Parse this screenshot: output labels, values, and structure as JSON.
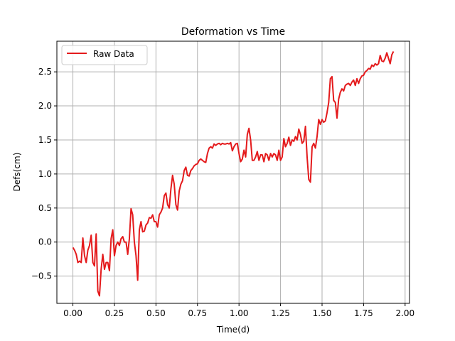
{
  "chart_data": {
    "type": "line",
    "title": "Deformation vs Time",
    "xlabel": "Time(d)",
    "ylabel": "Defs(cm)",
    "xlim": [
      -0.0965,
      2.0265
    ],
    "ylim": [
      -0.9,
      2.95
    ],
    "xticks": [
      0.0,
      0.25,
      0.5,
      0.75,
      1.0,
      1.25,
      1.5,
      1.75,
      2.0
    ],
    "xtick_labels": [
      "0.00",
      "0.25",
      "0.50",
      "0.75",
      "1.00",
      "1.25",
      "1.50",
      "1.75",
      "2.00"
    ],
    "yticks": [
      -0.5,
      0.0,
      0.5,
      1.0,
      1.5,
      2.0,
      2.5
    ],
    "ytick_labels": [
      "−0.5",
      "0.0",
      "0.5",
      "1.0",
      "1.5",
      "2.0",
      "2.5"
    ],
    "grid": true,
    "legend_position": "top-left",
    "series": [
      {
        "name": "Raw Data",
        "color": "#e41a1c",
        "points": [
          [
            0.0,
            -0.08
          ],
          [
            0.01,
            -0.12
          ],
          [
            0.02,
            -0.18
          ],
          [
            0.03,
            -0.3
          ],
          [
            0.04,
            -0.28
          ],
          [
            0.05,
            -0.3
          ],
          [
            0.06,
            0.06
          ],
          [
            0.07,
            -0.2
          ],
          [
            0.08,
            -0.3
          ],
          [
            0.09,
            -0.12
          ],
          [
            0.1,
            -0.05
          ],
          [
            0.11,
            0.1
          ],
          [
            0.12,
            -0.3
          ],
          [
            0.13,
            -0.35
          ],
          [
            0.14,
            0.12
          ],
          [
            0.15,
            -0.72
          ],
          [
            0.16,
            -0.79
          ],
          [
            0.17,
            -0.4
          ],
          [
            0.18,
            -0.18
          ],
          [
            0.19,
            -0.4
          ],
          [
            0.2,
            -0.3
          ],
          [
            0.21,
            -0.3
          ],
          [
            0.22,
            -0.42
          ],
          [
            0.23,
            0.05
          ],
          [
            0.24,
            0.18
          ],
          [
            0.25,
            -0.2
          ],
          [
            0.26,
            -0.05
          ],
          [
            0.27,
            0.0
          ],
          [
            0.28,
            -0.05
          ],
          [
            0.29,
            0.05
          ],
          [
            0.3,
            0.08
          ],
          [
            0.31,
            0.0
          ],
          [
            0.32,
            0.0
          ],
          [
            0.33,
            -0.18
          ],
          [
            0.34,
            0.05
          ],
          [
            0.35,
            0.49
          ],
          [
            0.36,
            0.4
          ],
          [
            0.37,
            0.0
          ],
          [
            0.38,
            -0.2
          ],
          [
            0.39,
            -0.56
          ],
          [
            0.4,
            0.18
          ],
          [
            0.41,
            0.3
          ],
          [
            0.42,
            0.15
          ],
          [
            0.43,
            0.16
          ],
          [
            0.44,
            0.25
          ],
          [
            0.45,
            0.28
          ],
          [
            0.46,
            0.36
          ],
          [
            0.47,
            0.35
          ],
          [
            0.48,
            0.4
          ],
          [
            0.49,
            0.3
          ],
          [
            0.5,
            0.3
          ],
          [
            0.51,
            0.22
          ],
          [
            0.52,
            0.4
          ],
          [
            0.53,
            0.44
          ],
          [
            0.54,
            0.5
          ],
          [
            0.55,
            0.68
          ],
          [
            0.56,
            0.72
          ],
          [
            0.57,
            0.55
          ],
          [
            0.58,
            0.5
          ],
          [
            0.59,
            0.78
          ],
          [
            0.6,
            0.98
          ],
          [
            0.61,
            0.85
          ],
          [
            0.62,
            0.55
          ],
          [
            0.63,
            0.47
          ],
          [
            0.64,
            0.75
          ],
          [
            0.65,
            0.85
          ],
          [
            0.66,
            0.9
          ],
          [
            0.67,
            1.05
          ],
          [
            0.68,
            1.1
          ],
          [
            0.69,
            0.98
          ],
          [
            0.7,
            0.97
          ],
          [
            0.71,
            1.05
          ],
          [
            0.72,
            1.08
          ],
          [
            0.73,
            1.12
          ],
          [
            0.74,
            1.14
          ],
          [
            0.75,
            1.15
          ],
          [
            0.76,
            1.2
          ],
          [
            0.77,
            1.22
          ],
          [
            0.78,
            1.2
          ],
          [
            0.79,
            1.18
          ],
          [
            0.8,
            1.17
          ],
          [
            0.81,
            1.3
          ],
          [
            0.82,
            1.38
          ],
          [
            0.83,
            1.4
          ],
          [
            0.84,
            1.38
          ],
          [
            0.85,
            1.44
          ],
          [
            0.86,
            1.42
          ],
          [
            0.87,
            1.44
          ],
          [
            0.88,
            1.45
          ],
          [
            0.89,
            1.43
          ],
          [
            0.9,
            1.45
          ],
          [
            0.91,
            1.44
          ],
          [
            0.92,
            1.44
          ],
          [
            0.93,
            1.45
          ],
          [
            0.94,
            1.44
          ],
          [
            0.95,
            1.46
          ],
          [
            0.96,
            1.34
          ],
          [
            0.97,
            1.4
          ],
          [
            0.98,
            1.44
          ],
          [
            0.99,
            1.45
          ],
          [
            1.0,
            1.3
          ],
          [
            1.01,
            1.18
          ],
          [
            1.02,
            1.22
          ],
          [
            1.03,
            1.35
          ],
          [
            1.04,
            1.25
          ],
          [
            1.05,
            1.58
          ],
          [
            1.06,
            1.67
          ],
          [
            1.07,
            1.5
          ],
          [
            1.08,
            1.2
          ],
          [
            1.09,
            1.2
          ],
          [
            1.1,
            1.25
          ],
          [
            1.11,
            1.33
          ],
          [
            1.12,
            1.2
          ],
          [
            1.13,
            1.28
          ],
          [
            1.14,
            1.28
          ],
          [
            1.15,
            1.18
          ],
          [
            1.16,
            1.3
          ],
          [
            1.17,
            1.28
          ],
          [
            1.18,
            1.2
          ],
          [
            1.19,
            1.3
          ],
          [
            1.2,
            1.25
          ],
          [
            1.21,
            1.3
          ],
          [
            1.22,
            1.28
          ],
          [
            1.23,
            1.2
          ],
          [
            1.24,
            1.35
          ],
          [
            1.25,
            1.2
          ],
          [
            1.26,
            1.25
          ],
          [
            1.27,
            1.52
          ],
          [
            1.28,
            1.4
          ],
          [
            1.29,
            1.45
          ],
          [
            1.3,
            1.54
          ],
          [
            1.31,
            1.42
          ],
          [
            1.32,
            1.5
          ],
          [
            1.33,
            1.48
          ],
          [
            1.34,
            1.55
          ],
          [
            1.35,
            1.5
          ],
          [
            1.36,
            1.66
          ],
          [
            1.37,
            1.58
          ],
          [
            1.38,
            1.45
          ],
          [
            1.39,
            1.48
          ],
          [
            1.4,
            1.7
          ],
          [
            1.41,
            1.25
          ],
          [
            1.42,
            0.92
          ],
          [
            1.43,
            0.88
          ],
          [
            1.44,
            1.4
          ],
          [
            1.45,
            1.45
          ],
          [
            1.46,
            1.38
          ],
          [
            1.47,
            1.55
          ],
          [
            1.48,
            1.8
          ],
          [
            1.49,
            1.73
          ],
          [
            1.5,
            1.8
          ],
          [
            1.51,
            1.76
          ],
          [
            1.52,
            1.78
          ],
          [
            1.53,
            1.9
          ],
          [
            1.54,
            2.05
          ],
          [
            1.55,
            2.4
          ],
          [
            1.56,
            2.43
          ],
          [
            1.57,
            2.08
          ],
          [
            1.58,
            2.05
          ],
          [
            1.59,
            1.82
          ],
          [
            1.6,
            2.1
          ],
          [
            1.61,
            2.2
          ],
          [
            1.62,
            2.25
          ],
          [
            1.63,
            2.22
          ],
          [
            1.64,
            2.3
          ],
          [
            1.65,
            2.32
          ],
          [
            1.66,
            2.33
          ],
          [
            1.67,
            2.3
          ],
          [
            1.68,
            2.35
          ],
          [
            1.69,
            2.38
          ],
          [
            1.7,
            2.3
          ],
          [
            1.71,
            2.4
          ],
          [
            1.72,
            2.33
          ],
          [
            1.73,
            2.4
          ],
          [
            1.74,
            2.44
          ],
          [
            1.75,
            2.45
          ],
          [
            1.76,
            2.5
          ],
          [
            1.77,
            2.52
          ],
          [
            1.78,
            2.55
          ],
          [
            1.79,
            2.54
          ],
          [
            1.8,
            2.6
          ],
          [
            1.81,
            2.58
          ],
          [
            1.82,
            2.62
          ],
          [
            1.83,
            2.6
          ],
          [
            1.84,
            2.62
          ],
          [
            1.85,
            2.74
          ],
          [
            1.86,
            2.66
          ],
          [
            1.87,
            2.65
          ],
          [
            1.88,
            2.7
          ],
          [
            1.89,
            2.78
          ],
          [
            1.9,
            2.7
          ],
          [
            1.91,
            2.62
          ],
          [
            1.92,
            2.75
          ],
          [
            1.93,
            2.8
          ]
        ]
      }
    ]
  }
}
